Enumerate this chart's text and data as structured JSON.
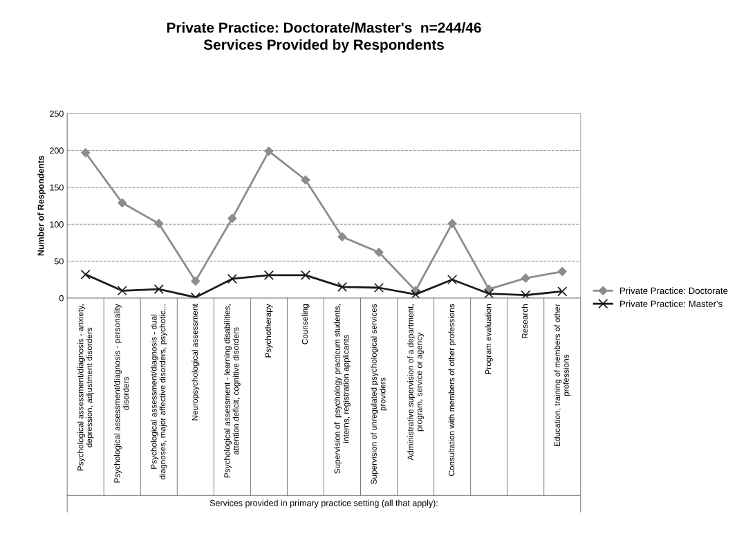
{
  "chart_data": {
    "type": "line",
    "title": "Private Practice: Doctorate/Master's  n=244/46",
    "subtitle": "Services Provided by Respondents",
    "xlabel": "Services provided in primary practice setting (all that apply):",
    "ylabel": "Number of Respondents",
    "categories": [
      "Psychological assessment/diagnosis - anxiety,\ndepression, adjustment disorders",
      "Psychological assessment/diagnosis - personality\ndisorders",
      "Psychological assessment/diagnosis - dual\ndiagnoses, major affective disorders, psychotic...",
      "Neuropsychological assessment",
      "Psychological assessment - learning disabilities,\nattention deficit, cognitive disorders",
      "Psychotherapy",
      "Counseling",
      "Supervision of  psychology practicum students,\ninterns, registration applicants",
      "Supervision of unregulated psychological services\nproviders",
      "Administrative supervision of a department,\nprogram, service or agency",
      "Consultation with members of other professions",
      "Program evaluation",
      "Research",
      "Education, training of members of other\nprofessions"
    ],
    "series": [
      {
        "name": "Private Practice: Doctorate",
        "color": "#8c8c8c",
        "marker": "diamond",
        "values": [
          197,
          129,
          101,
          23,
          108,
          199,
          160,
          83,
          62,
          10,
          101,
          12,
          27,
          36
        ]
      },
      {
        "name": "Private Practice: Master's",
        "color": "#1a1a1a",
        "marker": "cross",
        "values": [
          32,
          10,
          12,
          1,
          26,
          31,
          31,
          15,
          14,
          5,
          25,
          6,
          4,
          9
        ]
      }
    ],
    "ylim": [
      0,
      250
    ],
    "yticks": [
      0,
      50,
      100,
      150,
      200,
      250
    ],
    "grid": "y",
    "legend": "right",
    "line_style": "solid"
  }
}
